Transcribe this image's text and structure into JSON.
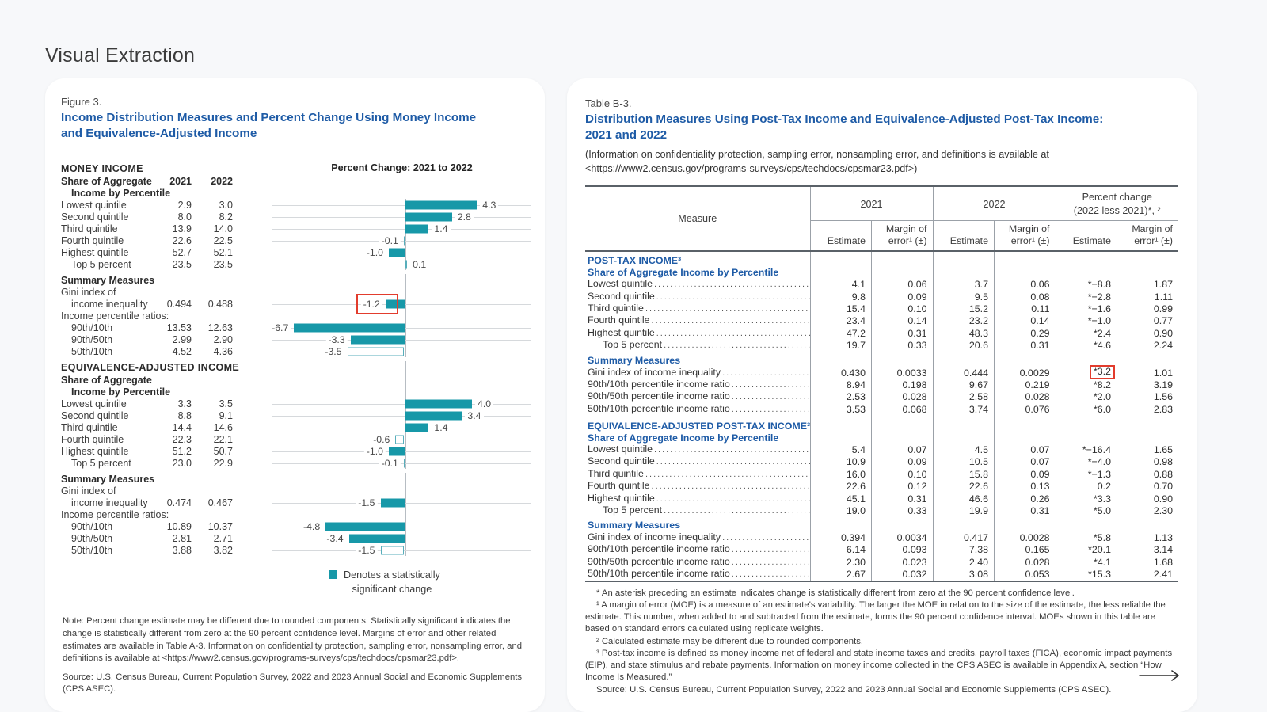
{
  "page_title": "Visual Extraction",
  "colors": {
    "accent_teal": "#1798a8",
    "heading_blue": "#1e5ba6",
    "highlight_red": "#e23c2d",
    "background": "#f7f8fa"
  },
  "figure": {
    "label": "Figure 3.",
    "title": "Income Distribution Measures and Percent Change Using Money Income\nand Equivalence-Adjusted Income",
    "chart_title": "Percent Change: 2021 to 2022",
    "legend": "Denotes a statistically\nsignificant change",
    "note": "Note: Percent change estimate may be different due to rounded components. Statistically significant indicates the change is statistically different from zero at the 90 percent confidence level. Margins of error and other related estimates are available in Table A-3. Information on confidentiality protection, sampling error, nonsampling error, and definitions is available at <https://www2.census.gov/programs-surveys/cps/techdocs/cpsmar23.pdf>.",
    "source": "Source: U.S. Census Bureau, Current Population Survey, 2022 and 2023 Annual Social and Economic Supplements (CPS ASEC).",
    "rows": [
      {
        "kind": "section",
        "label": "MONEY INCOME"
      },
      {
        "kind": "colhead",
        "label": "Share of Aggregate",
        "v1": "2021",
        "v2": "2022"
      },
      {
        "kind": "colhead2",
        "label": "Income by Percentile"
      },
      {
        "kind": "bar",
        "label": "Lowest quintile",
        "v1": "2.9",
        "v2": "3.0",
        "change": 4.3,
        "change_label": "4.3",
        "sig": true
      },
      {
        "kind": "bar",
        "label": "Second quintile",
        "v1": "8.0",
        "v2": "8.2",
        "change": 2.8,
        "change_label": "2.8",
        "sig": true
      },
      {
        "kind": "bar",
        "label": "Third quintile",
        "v1": "13.9",
        "v2": "14.0",
        "change": 1.4,
        "change_label": "1.4",
        "sig": true
      },
      {
        "kind": "bar",
        "label": "Fourth quintile",
        "v1": "22.6",
        "v2": "22.5",
        "change": -0.1,
        "change_label": "-0.1",
        "sig": false
      },
      {
        "kind": "bar",
        "label": "Highest quintile",
        "v1": "52.7",
        "v2": "52.1",
        "change": -1.0,
        "change_label": "-1.0",
        "sig": true
      },
      {
        "kind": "bar",
        "label": "Top 5 percent",
        "indent": true,
        "v1": "23.5",
        "v2": "23.5",
        "change": 0.1,
        "change_label": "0.1",
        "sig": false
      },
      {
        "kind": "subhead",
        "label": "Summary Measures"
      },
      {
        "kind": "plain",
        "label": "Gini index of"
      },
      {
        "kind": "bar",
        "label": "income inequality",
        "indent": true,
        "v1": "0.494",
        "v2": "0.488",
        "change": -1.2,
        "change_label": "-1.2",
        "sig": true,
        "highlight": true
      },
      {
        "kind": "plain",
        "label": "Income percentile ratios:"
      },
      {
        "kind": "bar",
        "label": "90th/10th",
        "indent": true,
        "v1": "13.53",
        "v2": "12.63",
        "change": -6.7,
        "change_label": "-6.7",
        "sig": true
      },
      {
        "kind": "bar",
        "label": "90th/50th",
        "indent": true,
        "v1": "2.99",
        "v2": "2.90",
        "change": -3.3,
        "change_label": "-3.3",
        "sig": true
      },
      {
        "kind": "bar",
        "label": "50th/10th",
        "indent": true,
        "v1": "4.52",
        "v2": "4.36",
        "change": -3.5,
        "change_label": "-3.5",
        "sig": false
      },
      {
        "kind": "section",
        "label": "EQUIVALENCE-ADJUSTED INCOME",
        "gap": true
      },
      {
        "kind": "colhead",
        "label": "Share of Aggregate"
      },
      {
        "kind": "colhead2",
        "label": "Income by Percentile"
      },
      {
        "kind": "bar",
        "label": "Lowest quintile",
        "v1": "3.3",
        "v2": "3.5",
        "change": 4.0,
        "change_label": "4.0",
        "sig": true
      },
      {
        "kind": "bar",
        "label": "Second quintile",
        "v1": "8.8",
        "v2": "9.1",
        "change": 3.4,
        "change_label": "3.4",
        "sig": true
      },
      {
        "kind": "bar",
        "label": "Third quintile",
        "v1": "14.4",
        "v2": "14.6",
        "change": 1.4,
        "change_label": "1.4",
        "sig": true
      },
      {
        "kind": "bar",
        "label": "Fourth quintile",
        "v1": "22.3",
        "v2": "22.1",
        "change": -0.6,
        "change_label": "-0.6",
        "sig": false
      },
      {
        "kind": "bar",
        "label": "Highest quintile",
        "v1": "51.2",
        "v2": "50.7",
        "change": -1.0,
        "change_label": "-1.0",
        "sig": true
      },
      {
        "kind": "bar",
        "label": "Top 5 percent",
        "indent": true,
        "v1": "23.0",
        "v2": "22.9",
        "change": -0.1,
        "change_label": "-0.1",
        "sig": false
      },
      {
        "kind": "subhead",
        "label": "Summary Measures"
      },
      {
        "kind": "plain",
        "label": "Gini index of"
      },
      {
        "kind": "bar",
        "label": "income inequality",
        "indent": true,
        "v1": "0.474",
        "v2": "0.467",
        "change": -1.5,
        "change_label": "-1.5",
        "sig": true
      },
      {
        "kind": "plain",
        "label": "Income percentile ratios:"
      },
      {
        "kind": "bar",
        "label": "90th/10th",
        "indent": true,
        "v1": "10.89",
        "v2": "10.37",
        "change": -4.8,
        "change_label": "-4.8",
        "sig": true
      },
      {
        "kind": "bar",
        "label": "90th/50th",
        "indent": true,
        "v1": "2.81",
        "v2": "2.71",
        "change": -3.4,
        "change_label": "-3.4",
        "sig": true
      },
      {
        "kind": "bar",
        "label": "50th/10th",
        "indent": true,
        "v1": "3.88",
        "v2": "3.82",
        "change": -1.5,
        "change_label": "-1.5",
        "sig": false
      }
    ]
  },
  "chart_data": {
    "type": "bar",
    "title": "Percent Change: 2021 to 2022",
    "orientation": "horizontal",
    "legend": "Denotes a statistically significant change",
    "groups": [
      {
        "name": "MONEY INCOME",
        "categories": [
          "Lowest quintile",
          "Second quintile",
          "Third quintile",
          "Fourth quintile",
          "Highest quintile",
          "Top 5 percent",
          "Gini index of income inequality",
          "90th/10th",
          "90th/50th",
          "50th/10th"
        ],
        "values": [
          4.3,
          2.8,
          1.4,
          -0.1,
          -1.0,
          0.1,
          -1.2,
          -6.7,
          -3.3,
          -3.5
        ],
        "significant": [
          true,
          true,
          true,
          false,
          true,
          false,
          true,
          true,
          true,
          false
        ]
      },
      {
        "name": "EQUIVALENCE-ADJUSTED INCOME",
        "categories": [
          "Lowest quintile",
          "Second quintile",
          "Third quintile",
          "Fourth quintile",
          "Highest quintile",
          "Top 5 percent",
          "Gini index of income inequality",
          "90th/10th",
          "90th/50th",
          "50th/10th"
        ],
        "values": [
          4.0,
          3.4,
          1.4,
          -0.6,
          -1.0,
          -0.1,
          -1.5,
          -4.8,
          -3.4,
          -1.5
        ],
        "significant": [
          true,
          true,
          true,
          false,
          true,
          false,
          true,
          true,
          true,
          false
        ]
      }
    ]
  },
  "table": {
    "label": "Table B-3.",
    "title": "Distribution Measures Using Post-Tax Income and Equivalence-Adjusted Post-Tax Income:\n2021 and 2022",
    "subtitle": "(Information on confidentiality protection, sampling error, nonsampling error, and definitions is available at\n<https://www2.census.gov/programs-surveys/cps/techdocs/cpsmar23.pdf>)",
    "measure_header": "Measure",
    "col_groups": {
      "g2021": "2021",
      "g2022": "2022",
      "gpc": "Percent change\n(2022 less 2021)*, ²"
    },
    "sub_headers": {
      "estimate": "Estimate",
      "moe": "Margin of\nerror¹ (±)"
    },
    "rows": [
      {
        "kind": "section",
        "label": "POST-TAX INCOME³",
        "first": true
      },
      {
        "kind": "section2",
        "label": "Share of Aggregate Income by Percentile"
      },
      {
        "kind": "data",
        "label": "Lowest quintile",
        "values": [
          "4.1",
          "0.06",
          "3.7",
          "0.06",
          "*−8.8",
          "1.87"
        ]
      },
      {
        "kind": "data",
        "label": "Second quintile",
        "values": [
          "9.8",
          "0.09",
          "9.5",
          "0.08",
          "*−2.8",
          "1.11"
        ]
      },
      {
        "kind": "data",
        "label": "Third quintile",
        "values": [
          "15.4",
          "0.10",
          "15.2",
          "0.11",
          "*−1.6",
          "0.99"
        ]
      },
      {
        "kind": "data",
        "label": "Fourth quintile",
        "values": [
          "23.4",
          "0.14",
          "23.2",
          "0.14",
          "*−1.0",
          "0.77"
        ]
      },
      {
        "kind": "data",
        "label": "Highest quintile",
        "values": [
          "47.2",
          "0.31",
          "48.3",
          "0.29",
          "*2.4",
          "0.90"
        ]
      },
      {
        "kind": "data",
        "label": "Top 5 percent",
        "indent": true,
        "values": [
          "19.7",
          "0.33",
          "20.6",
          "0.31",
          "*4.6",
          "2.24"
        ]
      },
      {
        "kind": "summary",
        "label": "Summary Measures",
        "gap_sm": true
      },
      {
        "kind": "data",
        "label": "Gini index of income inequality",
        "values": [
          "0.430",
          "0.0033",
          "0.444",
          "0.0029",
          "*3.2",
          "1.01"
        ],
        "highlight_col": 4
      },
      {
        "kind": "data",
        "label": "90th/10th percentile income ratio",
        "values": [
          "8.94",
          "0.198",
          "9.67",
          "0.219",
          "*8.2",
          "3.19"
        ]
      },
      {
        "kind": "data",
        "label": "90th/50th percentile income ratio",
        "values": [
          "2.53",
          "0.028",
          "2.58",
          "0.028",
          "*2.0",
          "1.56"
        ]
      },
      {
        "kind": "data",
        "label": "50th/10th percentile income ratio",
        "values": [
          "3.53",
          "0.068",
          "3.74",
          "0.076",
          "*6.0",
          "2.83"
        ]
      },
      {
        "kind": "section",
        "label": "EQUIVALENCE-ADJUSTED POST-TAX INCOME³",
        "gap": true
      },
      {
        "kind": "section2",
        "label": "Share of Aggregate Income by Percentile"
      },
      {
        "kind": "data",
        "label": "Lowest quintile",
        "values": [
          "5.4",
          "0.07",
          "4.5",
          "0.07",
          "*−16.4",
          "1.65"
        ]
      },
      {
        "kind": "data",
        "label": "Second quintile",
        "values": [
          "10.9",
          "0.09",
          "10.5",
          "0.07",
          "*−4.0",
          "0.98"
        ]
      },
      {
        "kind": "data",
        "label": "Third quintile",
        "values": [
          "16.0",
          "0.10",
          "15.8",
          "0.09",
          "*−1.3",
          "0.88"
        ]
      },
      {
        "kind": "data",
        "label": "Fourth quintile",
        "values": [
          "22.6",
          "0.12",
          "22.6",
          "0.13",
          "0.2",
          "0.70"
        ]
      },
      {
        "kind": "data",
        "label": "Highest quintile",
        "values": [
          "45.1",
          "0.31",
          "46.6",
          "0.26",
          "*3.3",
          "0.90"
        ]
      },
      {
        "kind": "data",
        "label": "Top 5 percent",
        "indent": true,
        "values": [
          "19.0",
          "0.33",
          "19.9",
          "0.31",
          "*5.0",
          "2.30"
        ]
      },
      {
        "kind": "summary",
        "label": "Summary Measures",
        "gap_sm": true
      },
      {
        "kind": "data",
        "label": "Gini index of income inequality",
        "values": [
          "0.394",
          "0.0034",
          "0.417",
          "0.0028",
          "*5.8",
          "1.13"
        ]
      },
      {
        "kind": "data",
        "label": "90th/10th percentile income ratio",
        "values": [
          "6.14",
          "0.093",
          "7.38",
          "0.165",
          "*20.1",
          "3.14"
        ]
      },
      {
        "kind": "data",
        "label": "90th/50th percentile income ratio",
        "values": [
          "2.30",
          "0.023",
          "2.40",
          "0.028",
          "*4.1",
          "1.68"
        ]
      },
      {
        "kind": "data",
        "label": "50th/10th percentile income ratio",
        "values": [
          "2.67",
          "0.032",
          "3.08",
          "0.053",
          "*15.3",
          "2.41"
        ]
      }
    ],
    "footnotes": [
      "* An asterisk preceding an estimate indicates change is statistically different from zero at the 90 percent confidence level.",
      "¹ A margin of error (MOE) is a measure of an estimate's variability. The larger the MOE in relation to the size of the estimate, the less reliable the estimate. This number, when added to and subtracted from the estimate, forms the 90 percent confidence interval. MOEs shown in this table are based on standard errors calculated using replicate weights.",
      "² Calculated estimate may be different due to rounded components.",
      "³ Post-tax income is defined as money income net of federal and state income taxes and credits, payroll taxes (FICA), economic impact payments (EIP), and state stimulus and rebate payments. Information on money income collected in the CPS ASEC is available in Appendix A, section “How Income Is Measured.”",
      "Source: U.S. Census Bureau, Current Population Survey, 2022 and 2023 Annual Social and Economic Supplements (CPS ASEC)."
    ]
  }
}
